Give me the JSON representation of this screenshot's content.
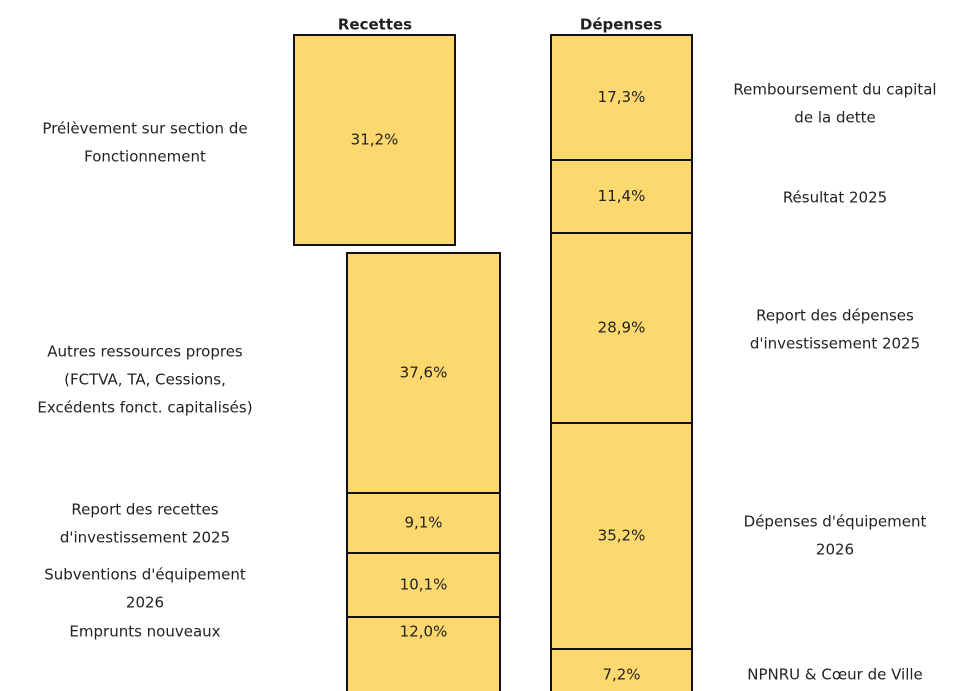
{
  "columns": [
    {
      "header": "Recettes",
      "blocks": [
        {
          "value_label": "31,2%",
          "label": [
            "Prélèvement sur section de",
            "Fonctionnement"
          ]
        },
        {
          "value_label": "37,6%",
          "label": [
            "Autres ressources propres",
            "(FCTVA, TA, Cessions,",
            "Excédents fonct. capitalisés)"
          ]
        },
        {
          "value_label": "9,1%",
          "label": [
            "Report des recettes",
            "d'investissement 2025"
          ]
        },
        {
          "value_label": "10,1%",
          "label": [
            "Subventions d'équipement",
            "2026"
          ]
        },
        {
          "value_label": "12,0%",
          "label": [
            "Emprunts nouveaux"
          ]
        }
      ]
    },
    {
      "header": "Dépenses",
      "blocks": [
        {
          "value_label": "17,3%",
          "label": [
            "Remboursement du capital",
            "de la dette"
          ]
        },
        {
          "value_label": "11,4%",
          "label": [
            "Résultat 2025"
          ]
        },
        {
          "value_label": "28,9%",
          "label": [
            "Report des dépenses",
            "d'investissement 2025"
          ]
        },
        {
          "value_label": "35,2%",
          "label": [
            "Dépenses d'équipement",
            "2026"
          ]
        },
        {
          "value_label": "7,2%",
          "label": [
            "NPNRU & Cœur de Ville"
          ]
        }
      ]
    }
  ]
}
